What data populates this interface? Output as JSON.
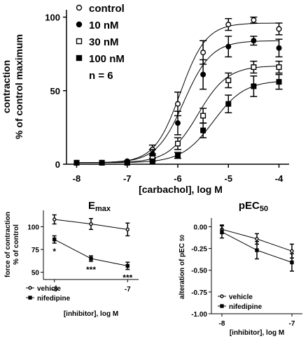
{
  "chart_data": [
    {
      "type": "line",
      "xlabel": "[carbachol], log M",
      "ylabel": [
        "contraction",
        "% of control maximum"
      ],
      "xlim": [
        -8.2,
        -3.8
      ],
      "ylim": [
        0,
        105
      ],
      "xticks": [
        "-8",
        "-7",
        "-6",
        "-5",
        "-4"
      ],
      "yticks": [
        "0",
        "50",
        "100"
      ],
      "grid": false,
      "legend_position": "top-left",
      "legend_note": "n = 6",
      "x": [
        -8,
        -7.5,
        -7,
        -6.5,
        -6,
        -5.5,
        -5,
        -4.5,
        -4
      ],
      "series": [
        {
          "name": "control",
          "marker": "open-circle",
          "values": [
            1,
            1,
            2,
            10,
            41,
            76,
            95,
            98,
            92
          ],
          "errors": [
            1,
            1,
            1,
            3,
            8,
            8,
            4,
            2,
            4
          ],
          "fit": {
            "bottom": 1,
            "top": 96,
            "logec50": -5.95,
            "hill": 1.7
          }
        },
        {
          "name": "10 nM",
          "marker": "filled-circle",
          "values": [
            1,
            1,
            2,
            7,
            28,
            61,
            80,
            84,
            79
          ],
          "errors": [
            1,
            1,
            1,
            3,
            8,
            10,
            7,
            3,
            6
          ],
          "fit": {
            "bottom": 1,
            "top": 84,
            "logec50": -5.88,
            "hill": 1.6
          }
        },
        {
          "name": "30 nM",
          "marker": "open-square",
          "values": [
            1,
            1,
            1,
            4,
            14,
            33,
            57,
            66,
            66
          ],
          "errors": [
            1,
            1,
            1,
            2,
            4,
            5,
            5,
            4,
            4
          ],
          "fit": {
            "bottom": 1,
            "top": 67,
            "logec50": -5.6,
            "hill": 1.5
          }
        },
        {
          "name": "100 nM",
          "marker": "filled-square",
          "values": [
            1,
            1,
            1,
            2,
            6,
            23,
            41,
            53,
            56
          ],
          "errors": [
            1,
            1,
            1,
            1,
            2,
            5,
            6,
            7,
            5
          ],
          "fit": {
            "bottom": 1,
            "top": 57,
            "logec50": -5.3,
            "hill": 1.4
          }
        }
      ]
    },
    {
      "type": "line",
      "title": "E",
      "title_sub": "max",
      "xlabel": "[inhibitor], log M",
      "ylabel": [
        "force of contraction",
        "% of control"
      ],
      "xlim": [
        -8.15,
        -6.85
      ],
      "ylim": [
        42,
        118
      ],
      "xticks": [
        "-8",
        "-7"
      ],
      "yticks": [
        "50",
        "75",
        "100"
      ],
      "legend_position": "bottom-left",
      "x": [
        -8,
        -7.5,
        -7
      ],
      "series": [
        {
          "name": "vehicle",
          "marker": "open-circle",
          "values": [
            108,
            103,
            97
          ],
          "errors": [
            5,
            6,
            7
          ]
        },
        {
          "name": "nifedipine",
          "marker": "filled-square",
          "values": [
            86,
            65,
            57
          ],
          "errors": [
            4,
            3,
            4
          ]
        }
      ],
      "annotations": [
        "*",
        "***",
        "***"
      ]
    },
    {
      "type": "line",
      "title": "pEC",
      "title_sub": "50",
      "xlabel": "[inhibitor], log M",
      "ylabel": [
        "alteration of pEC",
        "50"
      ],
      "xlim": [
        -8.15,
        -6.85
      ],
      "ylim": [
        -1.0,
        0.1
      ],
      "xticks": [
        "-8",
        "-7"
      ],
      "yticks": [
        "0.00",
        "-0.25",
        "-0.50",
        "-0.75",
        "-1.00"
      ],
      "legend_position": "bottom-left",
      "x": [
        -8,
        -7.5,
        -7
      ],
      "series": [
        {
          "name": "vehicle",
          "marker": "open-circle",
          "values": [
            -0.03,
            -0.14,
            -0.28
          ],
          "errors": [
            0.05,
            0.06,
            0.08
          ]
        },
        {
          "name": "nifedipine",
          "marker": "filled-square",
          "values": [
            -0.06,
            -0.27,
            -0.41
          ],
          "errors": [
            0.07,
            0.1,
            0.1
          ]
        }
      ]
    }
  ]
}
